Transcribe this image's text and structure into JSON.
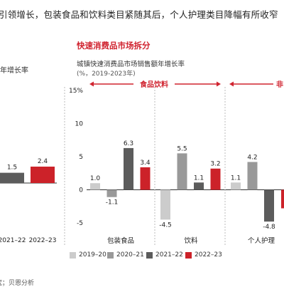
{
  "headline": "引领增长，包装食品和饮料类目紧随其后，个人护理类目降幅有所收窄",
  "left_panel": {
    "subtitle": "年增长率",
    "tick_labels": [
      "2021–22",
      "2022–23"
    ]
  },
  "right_panel": {
    "title": "快速消费品市场拆分",
    "chart_title": "城镇快速消费品市场销售额年增长率",
    "chart_subtitle": "(%，2019-2023年)"
  },
  "source": "究；贝恩分析",
  "colors": {
    "2019-20": "#cccccc",
    "2020-21": "#999999",
    "2021-22": "#5c5c5c",
    "2022-23": "#cc2229",
    "accent": "#d0232f"
  },
  "chart_data": [
    {
      "type": "bar",
      "categories": [
        "2021–22",
        "2022–23"
      ],
      "series": [
        {
          "values": [
            1.5,
            2.4
          ]
        }
      ],
      "title": "年增长率"
    },
    {
      "type": "bar",
      "title": "城镇快速消费品市场销售额年增长率",
      "subtitle": "(%，2019-2023年)",
      "ylim": [
        -5,
        15
      ],
      "yticks": [
        -5,
        0,
        5,
        10,
        15
      ],
      "ytick_labels": [
        "-5",
        "0",
        "5",
        "10",
        "15%"
      ],
      "group_labels": [
        {
          "text": "食品饮料",
          "spans": [
            "包装食品",
            "饮料"
          ]
        },
        {
          "text": "非",
          "spans": [
            "个人护理"
          ]
        }
      ],
      "categories": [
        "包装食品",
        "饮料",
        "个人护理"
      ],
      "series": [
        {
          "name": "2019–20",
          "values": [
            1.0,
            -4.5,
            1.1
          ]
        },
        {
          "name": "2020–21",
          "values": [
            -1.1,
            5.5,
            4.2
          ]
        },
        {
          "name": "2021–22",
          "values": [
            6.3,
            1.1,
            -4.8
          ]
        },
        {
          "name": "2022–23",
          "values": [
            3.4,
            3.2,
            null
          ]
        }
      ],
      "legend_position": "bottom"
    }
  ]
}
